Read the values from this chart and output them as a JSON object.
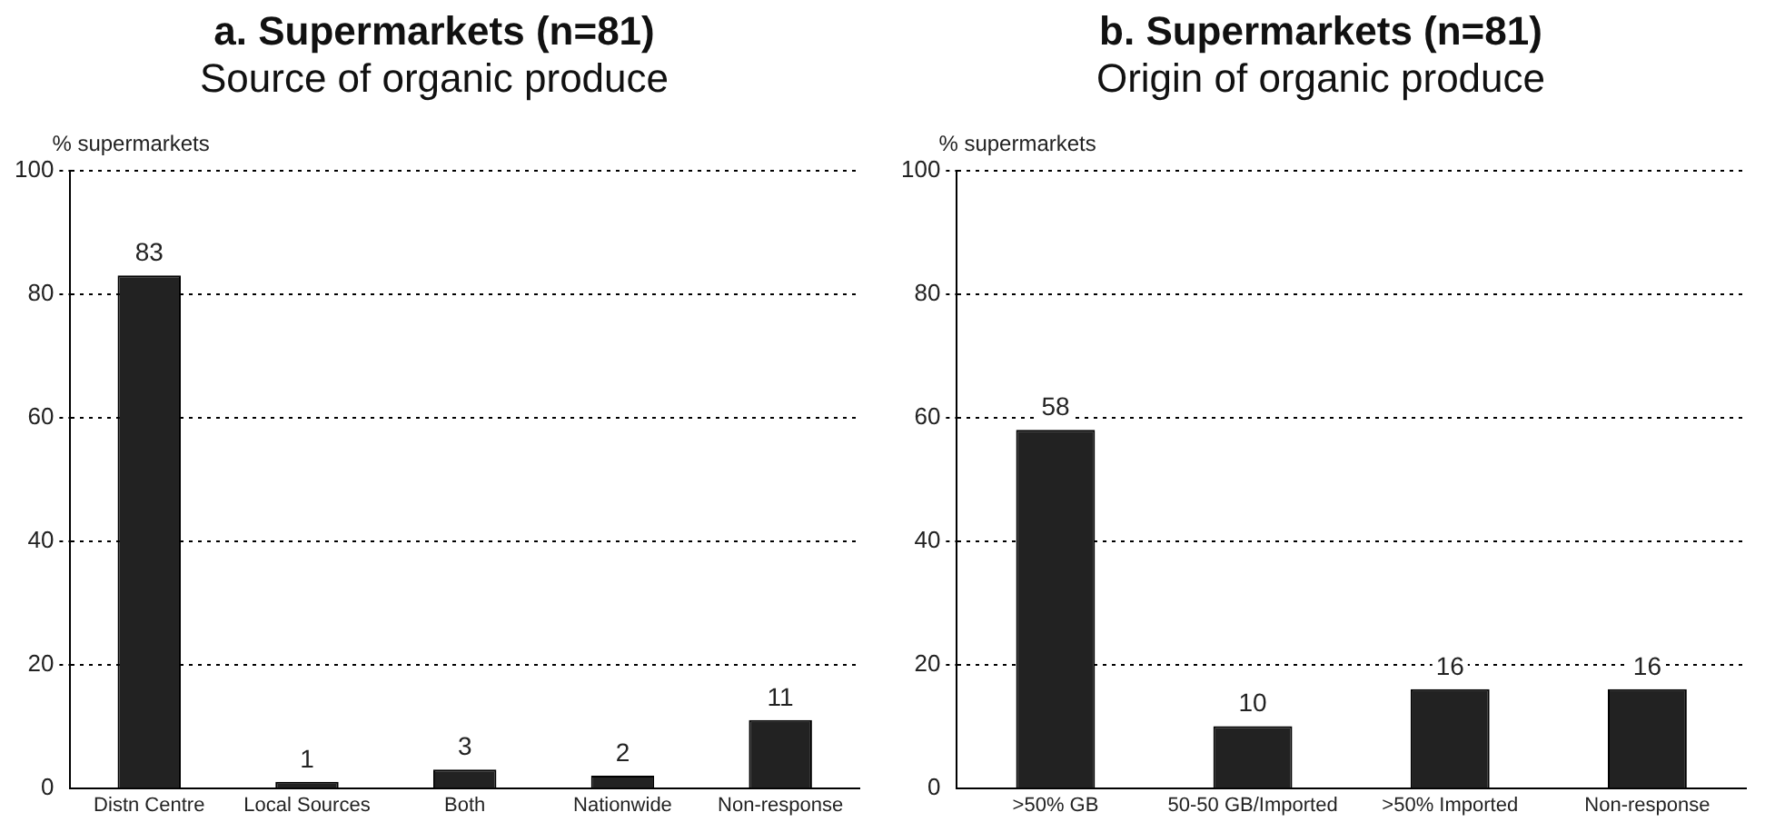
{
  "chart_data": [
    {
      "type": "bar",
      "title": "a. Supermarkets (n=81)",
      "subtitle": "Source of organic produce",
      "ylabel": "% supermarkets",
      "categories": [
        "Distn Centre",
        "Local Sources",
        "Both",
        "Nationwide",
        "Non-response"
      ],
      "values": [
        83,
        1,
        3,
        2,
        11
      ],
      "color": "#222222",
      "ylim": [
        0,
        100
      ],
      "yticks": [
        0,
        20,
        40,
        60,
        80,
        100
      ],
      "grid": "y",
      "data_labels": true
    },
    {
      "type": "bar",
      "title": "b. Supermarkets (n=81)",
      "subtitle": "Origin of organic produce",
      "ylabel": "% supermarkets",
      "categories": [
        ">50% GB",
        "50-50 GB/Imported",
        ">50% Imported",
        "Non-response"
      ],
      "values": [
        58,
        10,
        16,
        16
      ],
      "color": "#222222",
      "ylim": [
        0,
        100
      ],
      "yticks": [
        0,
        20,
        40,
        60,
        80,
        100
      ],
      "grid": "y",
      "data_labels": true
    }
  ]
}
